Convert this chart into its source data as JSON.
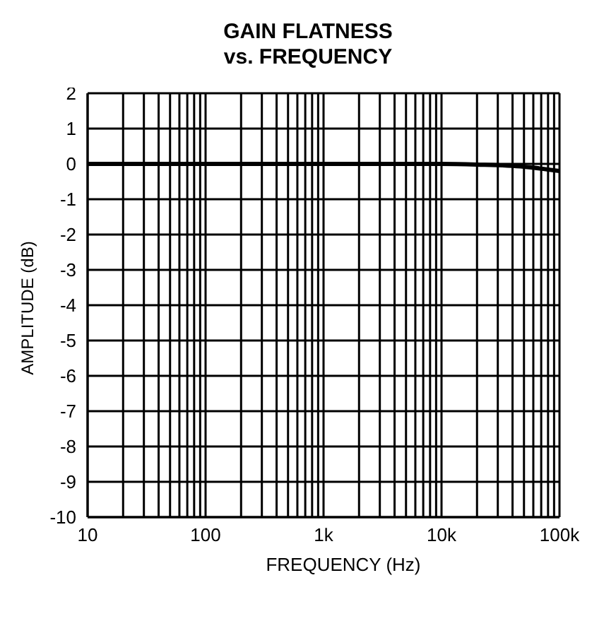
{
  "chart_data": {
    "type": "line",
    "title": "GAIN FLATNESS\nvs. FREQUENCY",
    "xlabel": "FREQUENCY (Hz)",
    "ylabel": "AMPLITUDE (dB)",
    "log": "x",
    "grid": true,
    "marker": "none",
    "line_style": "solid",
    "x": [
      10,
      100,
      1000,
      10000,
      20000,
      50000,
      100000
    ],
    "series": [
      {
        "color": "#000000",
        "values": [
          0,
          0,
          0,
          0,
          -0.02,
          -0.08,
          -0.2
        ]
      }
    ],
    "xlim": [
      10,
      100000
    ],
    "xticks": [
      {
        "value": 10,
        "label": "10"
      },
      {
        "value": 20,
        "label": null
      },
      {
        "value": 30,
        "label": null
      },
      {
        "value": 40,
        "label": null
      },
      {
        "value": 50,
        "label": null
      },
      {
        "value": 60,
        "label": null
      },
      {
        "value": 70,
        "label": null
      },
      {
        "value": 80,
        "label": null
      },
      {
        "value": 90,
        "label": null
      },
      {
        "value": 100,
        "label": "100"
      },
      {
        "value": 200,
        "label": null
      },
      {
        "value": 300,
        "label": null
      },
      {
        "value": 400,
        "label": null
      },
      {
        "value": 500,
        "label": null
      },
      {
        "value": 600,
        "label": null
      },
      {
        "value": 700,
        "label": null
      },
      {
        "value": 800,
        "label": null
      },
      {
        "value": 900,
        "label": null
      },
      {
        "value": 1000,
        "label": "1k"
      },
      {
        "value": 2000,
        "label": null
      },
      {
        "value": 3000,
        "label": null
      },
      {
        "value": 4000,
        "label": null
      },
      {
        "value": 5000,
        "label": null
      },
      {
        "value": 6000,
        "label": null
      },
      {
        "value": 7000,
        "label": null
      },
      {
        "value": 8000,
        "label": null
      },
      {
        "value": 9000,
        "label": null
      },
      {
        "value": 10000,
        "label": "10k"
      },
      {
        "value": 20000,
        "label": null
      },
      {
        "value": 30000,
        "label": null
      },
      {
        "value": 40000,
        "label": null
      },
      {
        "value": 50000,
        "label": null
      },
      {
        "value": 60000,
        "label": null
      },
      {
        "value": 70000,
        "label": null
      },
      {
        "value": 80000,
        "label": null
      },
      {
        "value": 90000,
        "label": null
      },
      {
        "value": 100000,
        "label": "100k"
      }
    ],
    "ylim": [
      -10,
      2
    ],
    "yticks": [
      -10,
      -9,
      -8,
      -7,
      -6,
      -5,
      -4,
      -3,
      -2,
      -1,
      0,
      1,
      2
    ]
  }
}
